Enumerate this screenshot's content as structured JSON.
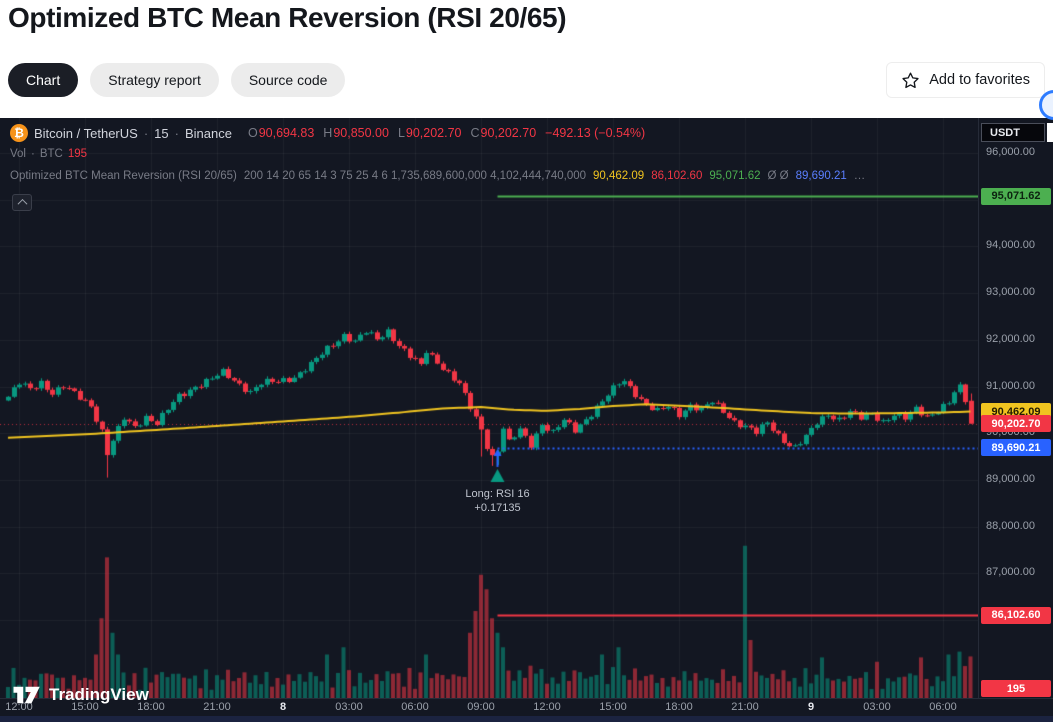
{
  "page": {
    "title": "Optimized BTC Mean Reversion (RSI 20/65)",
    "tabs": [
      {
        "label": "Chart",
        "active": true
      },
      {
        "label": "Strategy report",
        "active": false
      },
      {
        "label": "Source code",
        "active": false
      }
    ],
    "favorites_label": "Add to favorites"
  },
  "chart": {
    "symbol": "Bitcoin / TetherUS",
    "sep": "·",
    "interval": "15",
    "exchange": "Binance",
    "ohlc": {
      "o_label": "O",
      "o": "90,694.83",
      "h_label": "H",
      "h": "90,850.00",
      "l_label": "L",
      "l": "90,202.70",
      "c_label": "C",
      "c": "90,202.70",
      "change": "−492.13 (−0.54%)"
    },
    "volume_row": {
      "label": "Vol",
      "sep": "·",
      "unit": "BTC",
      "value": "195"
    },
    "strategy_row": {
      "name": "Optimized BTC Mean Reversion (RSI 20/65)",
      "params": "200 14 20 65 14 3 75 25 4 6 1,735,689,600,000 4,102,444,740,000",
      "ma": "90,462.09",
      "stop": "86,102.60",
      "target": "95,071.62",
      "empty": "Ø Ø",
      "entry": "89,690.21",
      "ellipsis": "…"
    },
    "currency": "USDT",
    "signal": {
      "line1": "Long: RSI 16",
      "line2": "+0.17135"
    },
    "logo_text": "TradingView",
    "price_labels": [
      {
        "text": "95,071.62",
        "price": 95071.62,
        "bg": "#4caf50",
        "fg": "#0c2310"
      },
      {
        "text": "90,462.09",
        "price": 90462.09,
        "bg": "#f0c420",
        "fg": "#241c00"
      },
      {
        "text": "90,202.70",
        "price": 90202.7,
        "bg": "#f23645",
        "fg": "#ffffff"
      },
      {
        "text": "89,690.21",
        "price": 89690.21,
        "bg": "#2962ff",
        "fg": "#ffffff"
      },
      {
        "text": "86,102.60",
        "price": 86102.6,
        "bg": "#f23645",
        "fg": "#ffffff"
      },
      {
        "text": "195",
        "volume_label": true,
        "bg": "#f23645",
        "fg": "#ffffff"
      }
    ]
  },
  "chart_data": {
    "type": "candlestick",
    "title": "Optimized BTC Mean Reversion (RSI 20/65)",
    "symbol": "Bitcoin / TetherUS",
    "interval_minutes": 15,
    "exchange": "Binance",
    "last_ohlc": {
      "open": 90694.83,
      "high": 90850.0,
      "low": 90202.7,
      "close": 90202.7,
      "change": -492.13,
      "change_pct": -0.54
    },
    "volume_last": 195,
    "ylim": [
      84300,
      96750
    ],
    "y_ticks": [
      96000,
      95000,
      94000,
      93000,
      92000,
      91000,
      90000,
      89000,
      88000,
      87000,
      86000
    ],
    "x_ticks": [
      "12:00",
      "15:00",
      "18:00",
      "21:00",
      "8",
      "03:00",
      "06:00",
      "09:00",
      "12:00",
      "15:00",
      "18:00",
      "21:00",
      "9",
      "03:00",
      "06:00"
    ],
    "tick_offset": 2,
    "candle_count": 176,
    "close_anchors": [
      [
        0,
        90780
      ],
      [
        2,
        91060
      ],
      [
        4,
        90940
      ],
      [
        6,
        91100
      ],
      [
        8,
        90870
      ],
      [
        10,
        90990
      ],
      [
        12,
        90840
      ],
      [
        15,
        90600
      ],
      [
        17,
        90050
      ],
      [
        18,
        89560
      ],
      [
        19,
        89830
      ],
      [
        21,
        90310
      ],
      [
        23,
        90140
      ],
      [
        25,
        90360
      ],
      [
        27,
        90210
      ],
      [
        29,
        90500
      ],
      [
        31,
        90790
      ],
      [
        34,
        91010
      ],
      [
        37,
        91160
      ],
      [
        39,
        91290
      ],
      [
        41,
        91140
      ],
      [
        44,
        90890
      ],
      [
        46,
        91060
      ],
      [
        49,
        91110
      ],
      [
        52,
        91210
      ],
      [
        55,
        91460
      ],
      [
        58,
        91810
      ],
      [
        61,
        92110
      ],
      [
        63,
        91960
      ],
      [
        65,
        92160
      ],
      [
        67,
        92010
      ],
      [
        69,
        92200
      ],
      [
        71,
        91890
      ],
      [
        73,
        91640
      ],
      [
        75,
        91440
      ],
      [
        76,
        91760
      ],
      [
        78,
        91540
      ],
      [
        80,
        91290
      ],
      [
        82,
        91040
      ],
      [
        84,
        90540
      ],
      [
        86,
        90090
      ],
      [
        87,
        89740
      ],
      [
        88,
        89510
      ],
      [
        89,
        89650
      ],
      [
        90,
        90110
      ],
      [
        91,
        89790
      ],
      [
        93,
        90060
      ],
      [
        95,
        89760
      ],
      [
        97,
        90210
      ],
      [
        99,
        90010
      ],
      [
        101,
        90260
      ],
      [
        103,
        90060
      ],
      [
        105,
        90310
      ],
      [
        107,
        90560
      ],
      [
        109,
        90810
      ],
      [
        111,
        91060
      ],
      [
        112,
        91110
      ],
      [
        114,
        90860
      ],
      [
        116,
        90610
      ],
      [
        118,
        90460
      ],
      [
        120,
        90560
      ],
      [
        122,
        90410
      ],
      [
        124,
        90610
      ],
      [
        126,
        90510
      ],
      [
        128,
        90660
      ],
      [
        130,
        90460
      ],
      [
        132,
        90260
      ],
      [
        134,
        90160
      ],
      [
        136,
        90010
      ],
      [
        138,
        90210
      ],
      [
        140,
        89960
      ],
      [
        142,
        89760
      ],
      [
        143,
        89710
      ],
      [
        145,
        89910
      ],
      [
        147,
        90210
      ],
      [
        149,
        90410
      ],
      [
        151,
        90310
      ],
      [
        153,
        90460
      ],
      [
        155,
        90310
      ],
      [
        157,
        90410
      ],
      [
        159,
        90260
      ],
      [
        161,
        90410
      ],
      [
        163,
        90310
      ],
      [
        165,
        90510
      ],
      [
        167,
        90360
      ],
      [
        169,
        90510
      ],
      [
        171,
        90660
      ],
      [
        172,
        90860
      ],
      [
        173,
        90960
      ],
      [
        174,
        90694.83
      ],
      [
        175,
        90202.7
      ]
    ],
    "low_overrides": [
      [
        18,
        89050
      ],
      [
        86,
        89500
      ],
      [
        88,
        89300
      ],
      [
        89,
        89320
      ]
    ],
    "ma_anchors": [
      [
        0,
        89900
      ],
      [
        16,
        89990
      ],
      [
        31,
        90100
      ],
      [
        46,
        90220
      ],
      [
        61,
        90340
      ],
      [
        71,
        90440
      ],
      [
        79,
        90530
      ],
      [
        86,
        90560
      ],
      [
        92,
        90500
      ],
      [
        98,
        90480
      ],
      [
        104,
        90520
      ],
      [
        110,
        90580
      ],
      [
        116,
        90620
      ],
      [
        122,
        90590
      ],
      [
        130,
        90540
      ],
      [
        138,
        90480
      ],
      [
        146,
        90430
      ],
      [
        154,
        90420
      ],
      [
        162,
        90430
      ],
      [
        170,
        90445
      ],
      [
        175,
        90462.09
      ]
    ],
    "ma_last": 90462.09,
    "ma_color": "#f0c420",
    "up_color": "#089981",
    "down_color": "#f23645",
    "volume_spikes": [
      [
        16,
        0.3
      ],
      [
        17,
        0.55
      ],
      [
        18,
        0.97
      ],
      [
        19,
        0.45
      ],
      [
        20,
        0.3
      ],
      [
        58,
        0.3
      ],
      [
        61,
        0.35
      ],
      [
        76,
        0.3
      ],
      [
        84,
        0.45
      ],
      [
        85,
        0.6
      ],
      [
        86,
        0.85
      ],
      [
        87,
        0.75
      ],
      [
        88,
        0.55
      ],
      [
        89,
        0.45
      ],
      [
        90,
        0.35
      ],
      [
        108,
        0.3
      ],
      [
        111,
        0.35
      ],
      [
        134,
        1.05,
        "up"
      ],
      [
        135,
        0.4
      ],
      [
        148,
        0.28
      ],
      [
        158,
        0.25
      ],
      [
        166,
        0.28
      ],
      [
        171,
        0.3
      ],
      [
        173,
        0.32
      ]
    ],
    "levels": [
      {
        "name": "take-profit",
        "price": 95071.62,
        "color": "#4caf50",
        "style": "solid",
        "width": 2,
        "from_signal": true
      },
      {
        "name": "entry",
        "price": 89690.21,
        "color": "#2962ff",
        "style": "dotted",
        "width": 2,
        "from_signal": true,
        "z": "front"
      },
      {
        "name": "stop",
        "price": 86102.6,
        "color": "#f23645",
        "style": "solid",
        "width": 2,
        "from_signal": true
      },
      {
        "name": "last-price",
        "price": 90202.7,
        "color": "#f23645",
        "style": "dashed",
        "width": 1,
        "opacity": 0.75,
        "from_signal": false
      }
    ],
    "signal_index": 89,
    "signal_low": 89320,
    "signal_text": [
      "Long: RSI 16",
      "+0.17135"
    ]
  }
}
